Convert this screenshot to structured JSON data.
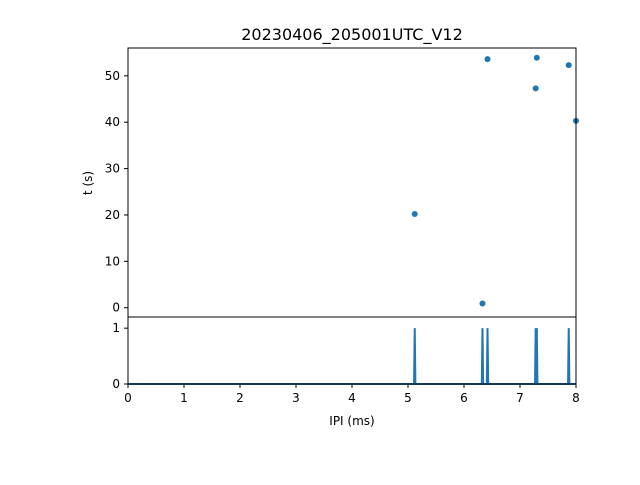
{
  "chart_data": [
    {
      "type": "scatter",
      "title": "20230406_205001UTC_V12",
      "xlabel": "",
      "ylabel": "t (s)",
      "xlim": [
        0,
        8
      ],
      "ylim": [
        56,
        -2
      ],
      "y_inverted": true,
      "x_ticks_shown": false,
      "yticks": [
        "0",
        "10",
        "20",
        "30",
        "40",
        "50"
      ],
      "color": "#1f77b4",
      "grid": false,
      "points": [
        {
          "x": 6.33,
          "y": 0.9
        },
        {
          "x": 5.12,
          "y": 20.2
        },
        {
          "x": 8.0,
          "y": 40.3
        },
        {
          "x": 7.28,
          "y": 47.3
        },
        {
          "x": 7.87,
          "y": 52.3
        },
        {
          "x": 6.42,
          "y": 53.6
        },
        {
          "x": 7.3,
          "y": 53.9
        }
      ]
    },
    {
      "type": "line",
      "title": "",
      "xlabel": "IPI (ms)",
      "ylabel": "",
      "xlim": [
        0,
        8
      ],
      "ylim": [
        0,
        1.2
      ],
      "xticks": [
        "0",
        "1",
        "2",
        "3",
        "4",
        "5",
        "6",
        "7",
        "8"
      ],
      "yticks": [
        "0",
        "1"
      ],
      "color": "#1f77b4",
      "grid": false,
      "baseline": 0,
      "spikes": [
        {
          "x": 5.12,
          "y": 1
        },
        {
          "x": 6.33,
          "y": 1
        },
        {
          "x": 6.42,
          "y": 1
        },
        {
          "x": 7.28,
          "y": 1
        },
        {
          "x": 7.3,
          "y": 1
        },
        {
          "x": 7.87,
          "y": 1
        }
      ]
    }
  ]
}
